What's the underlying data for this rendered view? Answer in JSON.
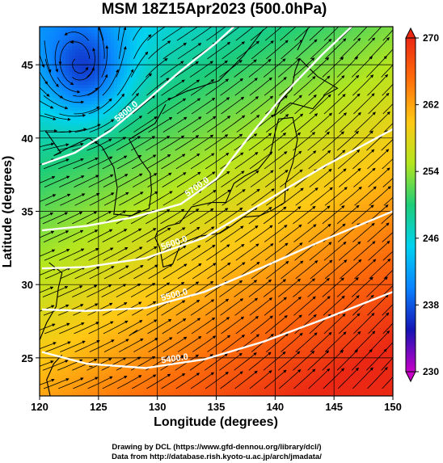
{
  "chart_data": {
    "type": "heatmap",
    "title": "MSM 18Z15Apr2023 (500.0hPa)",
    "xlabel": "Longitude (degrees)",
    "ylabel": "Latitude  (degrees)",
    "xlim": [
      120,
      150
    ],
    "ylim": [
      22.4,
      47.6
    ],
    "xticks": [
      "120",
      "125",
      "130",
      "135",
      "140",
      "145",
      "150"
    ],
    "yticks": [
      "25",
      "30",
      "35",
      "40",
      "45"
    ],
    "colorbar": {
      "range": [
        230,
        270
      ],
      "ticks": [
        "230",
        "238",
        "246",
        "254",
        "262",
        "270"
      ],
      "colors": [
        "#c800c8",
        "#1414b4",
        "#0a82ff",
        "#00d2f0",
        "#1ecd78",
        "#b4e61e",
        "#ffc814",
        "#ff6e0a",
        "#eb2814"
      ]
    },
    "contours": [
      {
        "label": "5400.0",
        "points": [
          [
            120.2,
            25.4
          ],
          [
            124,
            24.6
          ],
          [
            129,
            24.3
          ],
          [
            134,
            24.9
          ],
          [
            139,
            26.1
          ],
          [
            144,
            27.6
          ],
          [
            150,
            29.5
          ]
        ]
      },
      {
        "label": "5500.0",
        "points": [
          [
            120.2,
            28.3
          ],
          [
            124,
            28.2
          ],
          [
            129,
            28.4
          ],
          [
            134,
            29.5
          ],
          [
            139,
            31.2
          ],
          [
            144,
            33.0
          ],
          [
            150,
            35.0
          ]
        ]
      },
      {
        "label": "5600.0",
        "points": [
          [
            120.2,
            31.1
          ],
          [
            124,
            31.2
          ],
          [
            129,
            31.8
          ],
          [
            134,
            33.2
          ],
          [
            139,
            35.6
          ],
          [
            144,
            38.0
          ],
          [
            150,
            40.6
          ]
        ]
      },
      {
        "label": "5700.0",
        "points": [
          [
            120.2,
            33.7
          ],
          [
            124,
            34.0
          ],
          [
            128,
            34.6
          ],
          [
            132,
            35.5
          ],
          [
            135,
            37.2
          ],
          [
            138,
            40.3
          ],
          [
            141,
            43.2
          ],
          [
            144,
            45.7
          ],
          [
            146.5,
            47.6
          ]
        ]
      },
      {
        "label": "5800.0",
        "points": [
          [
            120.2,
            38.2
          ],
          [
            123,
            39.0
          ],
          [
            126,
            40.5
          ],
          [
            129,
            42.5
          ],
          [
            132,
            44.6
          ],
          [
            135,
            46.5
          ],
          [
            136.5,
            47.6
          ]
        ]
      }
    ],
    "footer": [
      "Drawing by DCL (https://www.gfd-dennou.org/library/dcl/)",
      "Data from http://database.rish.kyoto-u.ac.jp/arch/jmadata/"
    ]
  }
}
